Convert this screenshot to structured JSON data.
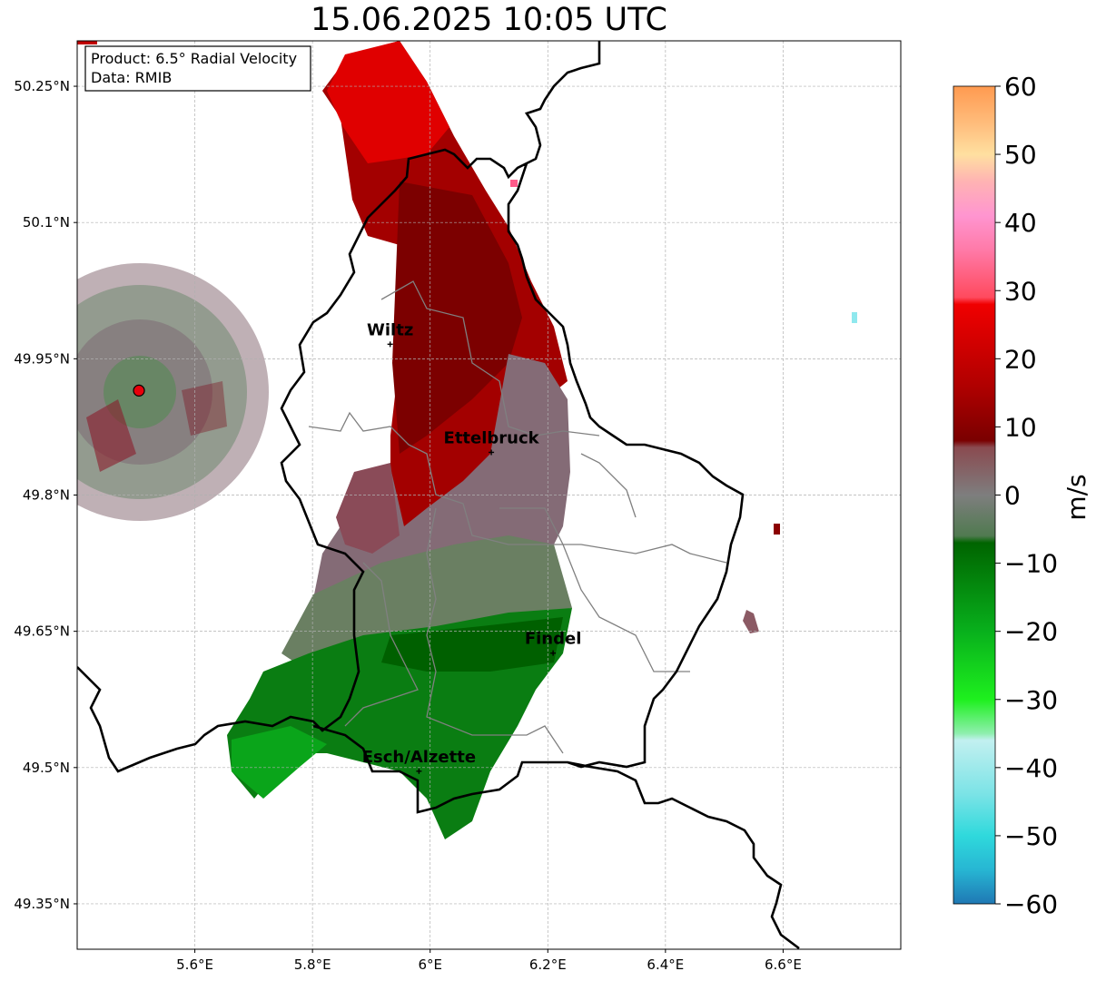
{
  "title": "15.06.2025 10:05 UTC",
  "info_box": {
    "line1": "Product: 6.5° Radial Velocity",
    "line2": "Data: RMIB"
  },
  "map": {
    "lon_ticks": [
      {
        "value": 5.6,
        "label": "5.6°E"
      },
      {
        "value": 5.8,
        "label": "5.8°E"
      },
      {
        "value": 6.0,
        "label": "6°E"
      },
      {
        "value": 6.2,
        "label": "6.2°E"
      },
      {
        "value": 6.4,
        "label": "6.4°E"
      },
      {
        "value": 6.6,
        "label": "6.6°E"
      }
    ],
    "lat_ticks": [
      {
        "value": 50.25,
        "label": "50.25°N"
      },
      {
        "value": 50.1,
        "label": "50.1°N"
      },
      {
        "value": 49.95,
        "label": "49.95°N"
      },
      {
        "value": 49.8,
        "label": "49.8°N"
      },
      {
        "value": 49.65,
        "label": "49.65°N"
      },
      {
        "value": 49.5,
        "label": "49.5°N"
      },
      {
        "value": 49.35,
        "label": "49.35°N"
      }
    ],
    "extent": {
      "lon_min": 5.4,
      "lon_max": 6.8,
      "lat_min": 49.3,
      "lat_max": 50.3
    },
    "gridlines": true,
    "radar_site": {
      "lon": 5.505,
      "lat": 49.915
    },
    "cities": [
      {
        "name": "Wiltz",
        "lon": 5.932,
        "lat": 49.966
      },
      {
        "name": "Ettelbruck",
        "lon": 6.104,
        "lat": 49.847
      },
      {
        "name": "Findel",
        "lon": 6.209,
        "lat": 49.626
      },
      {
        "name": "Esch/Alzette",
        "lon": 5.981,
        "lat": 49.496
      }
    ]
  },
  "colorbar": {
    "label": "m/s",
    "ticks": [
      {
        "value": 60,
        "label": "60"
      },
      {
        "value": 50,
        "label": "50"
      },
      {
        "value": 40,
        "label": "40"
      },
      {
        "value": 30,
        "label": "30"
      },
      {
        "value": 20,
        "label": "20"
      },
      {
        "value": 10,
        "label": "10"
      },
      {
        "value": 0,
        "label": "0"
      },
      {
        "value": -10,
        "label": "−10"
      },
      {
        "value": -20,
        "label": "−20"
      },
      {
        "value": -30,
        "label": "−30"
      },
      {
        "value": -40,
        "label": "−40"
      },
      {
        "value": -50,
        "label": "−50"
      },
      {
        "value": -60,
        "label": "−60"
      }
    ],
    "min": -60,
    "max": 60,
    "stops": [
      {
        "v": -60,
        "c": "#1f78b4"
      },
      {
        "v": -55,
        "c": "#27b6d3"
      },
      {
        "v": -50,
        "c": "#2fd9dc"
      },
      {
        "v": -44,
        "c": "#7ae3e6"
      },
      {
        "v": -36,
        "c": "#c2f0f0"
      },
      {
        "v": -35,
        "c": "#8fefae"
      },
      {
        "v": -30,
        "c": "#1ef01e"
      },
      {
        "v": -20,
        "c": "#08b01c"
      },
      {
        "v": -7,
        "c": "#006400"
      },
      {
        "v": -6,
        "c": "#507a50"
      },
      {
        "v": 0,
        "c": "#7e7e7e"
      },
      {
        "v": 7,
        "c": "#8a4a50"
      },
      {
        "v": 8,
        "c": "#7a0000"
      },
      {
        "v": 16,
        "c": "#b00000"
      },
      {
        "v": 28,
        "c": "#f00000"
      },
      {
        "v": 29,
        "c": "#ff4a5e"
      },
      {
        "v": 36,
        "c": "#ff7aa8"
      },
      {
        "v": 41,
        "c": "#ff95d0"
      },
      {
        "v": 46,
        "c": "#ffb3b3"
      },
      {
        "v": 50,
        "c": "#ffe0a0"
      },
      {
        "v": 54,
        "c": "#ffc080"
      },
      {
        "v": 60,
        "c": "#ff9a50"
      }
    ]
  }
}
